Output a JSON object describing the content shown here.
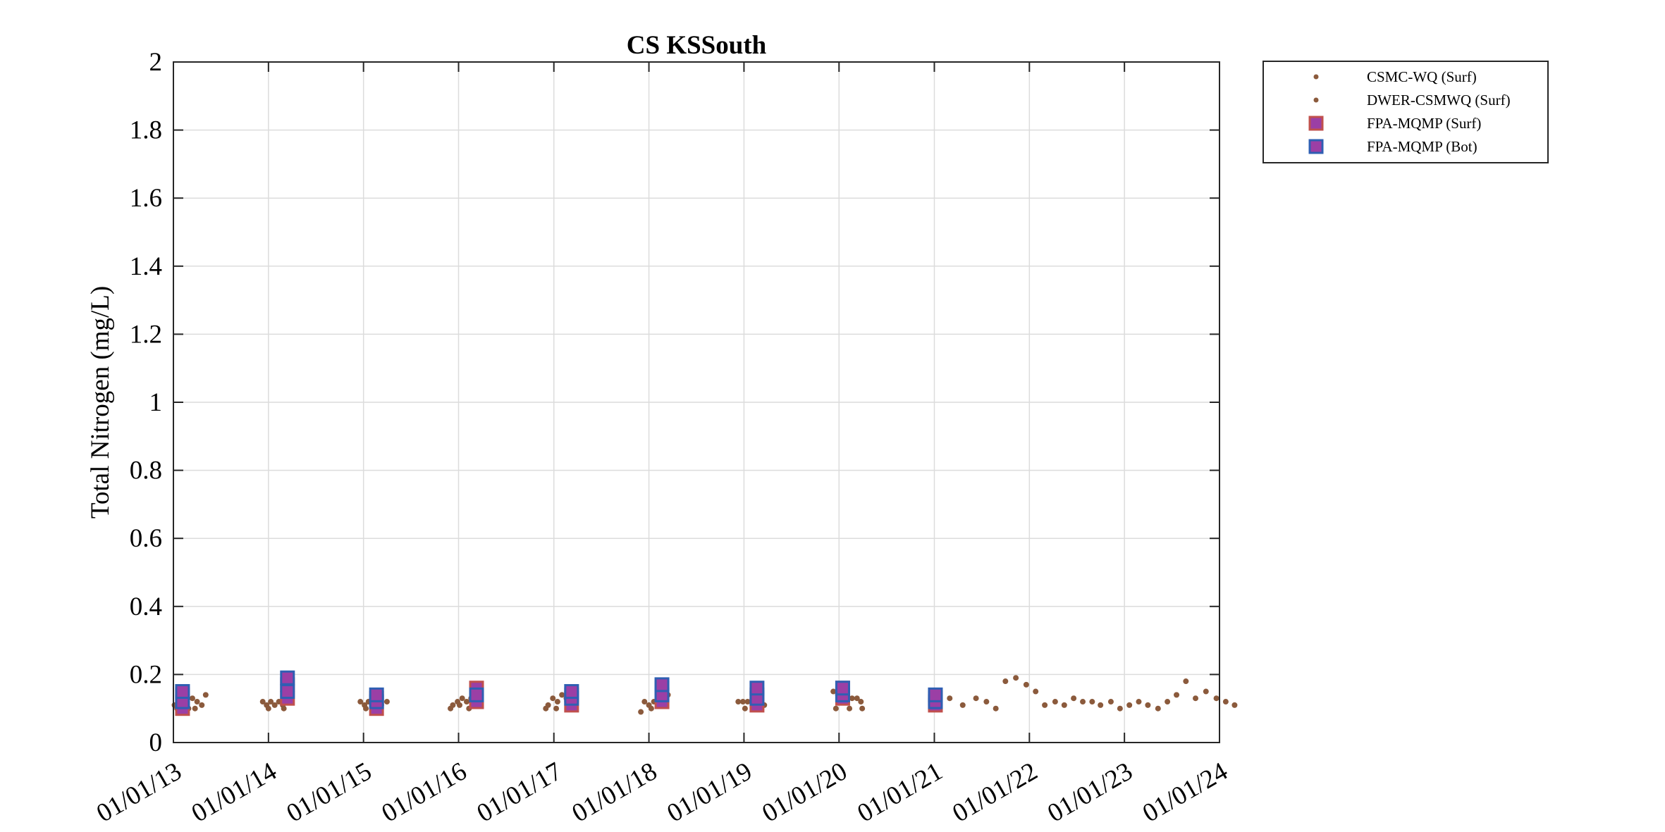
{
  "chart_data": {
    "type": "scatter",
    "title": "CS KSSouth",
    "xlabel": "",
    "ylabel": "Total Nitrogen (mg/L)",
    "xlim": [
      "2013-01-01",
      "2024-01-01"
    ],
    "ylim": [
      0,
      2
    ],
    "x_ticks": [
      "01/01/13",
      "01/01/14",
      "01/01/15",
      "01/01/16",
      "01/01/17",
      "01/01/18",
      "01/01/19",
      "01/01/20",
      "01/01/21",
      "01/01/22",
      "01/01/23",
      "01/01/24"
    ],
    "y_ticks": [
      "0",
      "0.2",
      "0.4",
      "0.6",
      "0.8",
      "1",
      "1.2",
      "1.4",
      "1.6",
      "1.8",
      "2"
    ],
    "grid": true,
    "legend_position": "outside-top-right",
    "colors": {
      "dot": "#8B5A3C",
      "square_fill": "#9B3FA5",
      "surf_edge": "#C0504D",
      "bot_edge": "#2F5FB3",
      "grid": "#DCDCDC",
      "axis": "#262626"
    },
    "series": [
      {
        "name": "CSMC-WQ (Surf)",
        "marker": "dot",
        "points": [
          {
            "x": "2013-01-05",
            "y": 0.11
          },
          {
            "x": "2013-01-25",
            "y": 0.12
          },
          {
            "x": "2013-02-10",
            "y": 0.14
          },
          {
            "x": "2013-02-28",
            "y": 0.1
          },
          {
            "x": "2013-03-15",
            "y": 0.13
          },
          {
            "x": "2013-04-02",
            "y": 0.12
          },
          {
            "x": "2013-04-20",
            "y": 0.11
          },
          {
            "x": "2013-05-05",
            "y": 0.14
          },
          {
            "x": "2013-12-10",
            "y": 0.12
          },
          {
            "x": "2013-12-25",
            "y": 0.11
          },
          {
            "x": "2014-01-10",
            "y": 0.12
          },
          {
            "x": "2014-01-25",
            "y": 0.11
          },
          {
            "x": "2014-02-10",
            "y": 0.12
          },
          {
            "x": "2014-02-25",
            "y": 0.11
          },
          {
            "x": "2014-03-12",
            "y": 0.12
          },
          {
            "x": "2014-12-20",
            "y": 0.12
          },
          {
            "x": "2015-01-05",
            "y": 0.11
          },
          {
            "x": "2015-01-20",
            "y": 0.12
          },
          {
            "x": "2015-02-05",
            "y": 0.11
          },
          {
            "x": "2015-02-20",
            "y": 0.12
          },
          {
            "x": "2015-03-10",
            "y": 0.11
          },
          {
            "x": "2015-04-01",
            "y": 0.12
          },
          {
            "x": "2015-12-10",
            "y": 0.11
          },
          {
            "x": "2015-12-28",
            "y": 0.12
          },
          {
            "x": "2016-01-15",
            "y": 0.13
          },
          {
            "x": "2016-02-01",
            "y": 0.12
          },
          {
            "x": "2016-02-18",
            "y": 0.13
          },
          {
            "x": "2016-12-10",
            "y": 0.11
          },
          {
            "x": "2016-12-28",
            "y": 0.13
          },
          {
            "x": "2017-01-15",
            "y": 0.12
          },
          {
            "x": "2017-02-01",
            "y": 0.14
          },
          {
            "x": "2017-02-18",
            "y": 0.13
          },
          {
            "x": "2017-12-15",
            "y": 0.12
          },
          {
            "x": "2018-01-01",
            "y": 0.11
          },
          {
            "x": "2018-01-20",
            "y": 0.12
          },
          {
            "x": "2018-02-05",
            "y": 0.13
          },
          {
            "x": "2018-02-25",
            "y": 0.12
          },
          {
            "x": "2018-03-15",
            "y": 0.14
          },
          {
            "x": "2018-12-10",
            "y": 0.12
          },
          {
            "x": "2018-12-28",
            "y": 0.12
          },
          {
            "x": "2019-01-15",
            "y": 0.12
          },
          {
            "x": "2019-02-01",
            "y": 0.12
          },
          {
            "x": "2019-02-20",
            "y": 0.12
          },
          {
            "x": "2019-03-10",
            "y": 0.12
          },
          {
            "x": "2019-12-10",
            "y": 0.15
          },
          {
            "x": "2019-12-28",
            "y": 0.14
          },
          {
            "x": "2020-01-15",
            "y": 0.13
          },
          {
            "x": "2020-02-01",
            "y": 0.12
          },
          {
            "x": "2020-02-20",
            "y": 0.13
          },
          {
            "x": "2020-03-10",
            "y": 0.13
          },
          {
            "x": "2020-03-25",
            "y": 0.12
          }
        ]
      },
      {
        "name": "DWER-CSMWQ (Surf)",
        "marker": "dot",
        "points": [
          {
            "x": "2013-01-15",
            "y": 0.1
          },
          {
            "x": "2013-02-20",
            "y": 0.12
          },
          {
            "x": "2013-03-25",
            "y": 0.1
          },
          {
            "x": "2014-01-01",
            "y": 0.1
          },
          {
            "x": "2014-03-01",
            "y": 0.1
          },
          {
            "x": "2015-01-10",
            "y": 0.1
          },
          {
            "x": "2015-03-01",
            "y": 0.1
          },
          {
            "x": "2015-12-01",
            "y": 0.1
          },
          {
            "x": "2016-01-05",
            "y": 0.11
          },
          {
            "x": "2016-02-10",
            "y": 0.1
          },
          {
            "x": "2016-12-01",
            "y": 0.1
          },
          {
            "x": "2017-01-10",
            "y": 0.1
          },
          {
            "x": "2017-02-25",
            "y": 0.15
          },
          {
            "x": "2017-12-01",
            "y": 0.09
          },
          {
            "x": "2018-01-10",
            "y": 0.1
          },
          {
            "x": "2018-03-01",
            "y": 0.13
          },
          {
            "x": "2019-01-05",
            "y": 0.1
          },
          {
            "x": "2019-02-25",
            "y": 0.11
          },
          {
            "x": "2019-03-20",
            "y": 0.11
          },
          {
            "x": "2019-12-20",
            "y": 0.1
          },
          {
            "x": "2020-02-10",
            "y": 0.1
          },
          {
            "x": "2020-03-30",
            "y": 0.1
          },
          {
            "x": "2021-01-10",
            "y": 0.14
          },
          {
            "x": "2021-03-01",
            "y": 0.13
          },
          {
            "x": "2021-04-20",
            "y": 0.11
          },
          {
            "x": "2021-06-10",
            "y": 0.13
          },
          {
            "x": "2021-07-20",
            "y": 0.12
          },
          {
            "x": "2021-08-25",
            "y": 0.1
          },
          {
            "x": "2021-10-01",
            "y": 0.18
          },
          {
            "x": "2021-11-10",
            "y": 0.19
          },
          {
            "x": "2021-12-20",
            "y": 0.17
          },
          {
            "x": "2022-01-25",
            "y": 0.15
          },
          {
            "x": "2022-03-01",
            "y": 0.11
          },
          {
            "x": "2022-04-10",
            "y": 0.12
          },
          {
            "x": "2022-05-15",
            "y": 0.11
          },
          {
            "x": "2022-06-20",
            "y": 0.13
          },
          {
            "x": "2022-07-25",
            "y": 0.12
          },
          {
            "x": "2022-08-30",
            "y": 0.12
          },
          {
            "x": "2022-10-01",
            "y": 0.11
          },
          {
            "x": "2022-11-10",
            "y": 0.12
          },
          {
            "x": "2022-12-15",
            "y": 0.1
          },
          {
            "x": "2023-01-20",
            "y": 0.11
          },
          {
            "x": "2023-02-25",
            "y": 0.12
          },
          {
            "x": "2023-04-01",
            "y": 0.11
          },
          {
            "x": "2023-05-10",
            "y": 0.1
          },
          {
            "x": "2023-06-15",
            "y": 0.12
          },
          {
            "x": "2023-07-20",
            "y": 0.14
          },
          {
            "x": "2023-08-25",
            "y": 0.18
          },
          {
            "x": "2023-10-01",
            "y": 0.13
          },
          {
            "x": "2023-11-10",
            "y": 0.15
          },
          {
            "x": "2023-12-20",
            "y": 0.13
          },
          {
            "x": "2024-01-25",
            "y": 0.12
          },
          {
            "x": "2024-02-28",
            "y": 0.11
          }
        ]
      },
      {
        "name": "FPA-MQMP (Surf)",
        "marker": "square",
        "points": [
          {
            "x": "2013-02-05",
            "y": 0.1
          },
          {
            "x": "2013-02-05",
            "y": 0.14
          },
          {
            "x": "2014-03-15",
            "y": 0.13
          },
          {
            "x": "2014-03-15",
            "y": 0.17
          },
          {
            "x": "2015-02-20",
            "y": 0.1
          },
          {
            "x": "2015-02-20",
            "y": 0.13
          },
          {
            "x": "2016-03-10",
            "y": 0.16
          },
          {
            "x": "2016-03-10",
            "y": 0.12
          },
          {
            "x": "2017-03-10",
            "y": 0.11
          },
          {
            "x": "2017-03-10",
            "y": 0.14
          },
          {
            "x": "2018-02-20",
            "y": 0.12
          },
          {
            "x": "2018-02-20",
            "y": 0.16
          },
          {
            "x": "2019-02-20",
            "y": 0.11
          },
          {
            "x": "2019-02-20",
            "y": 0.14
          },
          {
            "x": "2020-01-15",
            "y": 0.13
          },
          {
            "x": "2020-01-15",
            "y": 0.16
          },
          {
            "x": "2021-01-05",
            "y": 0.11
          },
          {
            "x": "2021-01-05",
            "y": 0.13
          }
        ]
      },
      {
        "name": "FPA-MQMP (Bot)",
        "marker": "square",
        "points": [
          {
            "x": "2013-02-05",
            "y": 0.12
          },
          {
            "x": "2013-02-05",
            "y": 0.15
          },
          {
            "x": "2014-03-15",
            "y": 0.15
          },
          {
            "x": "2014-03-15",
            "y": 0.19
          },
          {
            "x": "2015-02-20",
            "y": 0.12
          },
          {
            "x": "2015-02-20",
            "y": 0.14
          },
          {
            "x": "2016-03-10",
            "y": 0.14
          },
          {
            "x": "2017-03-10",
            "y": 0.13
          },
          {
            "x": "2017-03-10",
            "y": 0.15
          },
          {
            "x": "2018-02-20",
            "y": 0.14
          },
          {
            "x": "2018-02-20",
            "y": 0.17
          },
          {
            "x": "2019-02-20",
            "y": 0.13
          },
          {
            "x": "2019-02-20",
            "y": 0.16
          },
          {
            "x": "2020-01-15",
            "y": 0.14
          },
          {
            "x": "2020-01-15",
            "y": 0.16
          },
          {
            "x": "2021-01-05",
            "y": 0.12
          },
          {
            "x": "2021-01-05",
            "y": 0.14
          }
        ]
      }
    ]
  }
}
